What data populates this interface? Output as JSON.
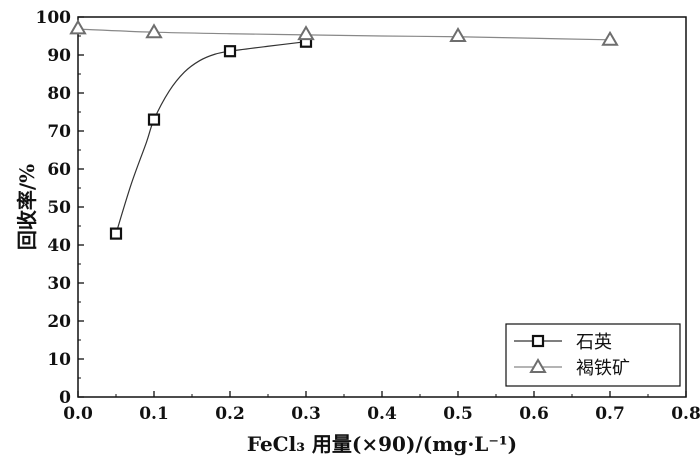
{
  "chart_data": {
    "type": "line",
    "xlabel": "FeCl₃ 用量(×90)/(mg·L⁻¹)",
    "ylabel": "回收率/%",
    "xlim": [
      0,
      0.8
    ],
    "ylim": [
      0,
      100
    ],
    "xticks": [
      "0.0",
      "0.1",
      "0.2",
      "0.3",
      "0.4",
      "0.5",
      "0.6",
      "0.7",
      "0.8"
    ],
    "yticks": [
      "0",
      "10",
      "20",
      "30",
      "40",
      "50",
      "60",
      "70",
      "80",
      "90",
      "100"
    ],
    "grid": false,
    "legend": "bottom-right",
    "series": [
      {
        "name": "石英",
        "marker": "square",
        "color": "#111111",
        "x": [
          0.05,
          0.1,
          0.2,
          0.3
        ],
        "y": [
          43,
          73,
          91,
          93.5
        ],
        "fit": [
          [
            0.05,
            43
          ],
          [
            0.07,
            56
          ],
          [
            0.09,
            67
          ],
          [
            0.1,
            73
          ],
          [
            0.12,
            80.5
          ],
          [
            0.14,
            85.5
          ],
          [
            0.16,
            88.5
          ],
          [
            0.18,
            90.2
          ],
          [
            0.2,
            91
          ],
          [
            0.25,
            92.3
          ],
          [
            0.3,
            93.5
          ]
        ]
      },
      {
        "name": "褐铁矿",
        "marker": "triangle",
        "color": "#6e6e6e",
        "x": [
          0.0,
          0.1,
          0.3,
          0.5,
          0.7
        ],
        "y": [
          97,
          96,
          95.5,
          95,
          94
        ],
        "fit": [
          [
            0.0,
            96.8
          ],
          [
            0.1,
            96
          ],
          [
            0.2,
            95.6
          ],
          [
            0.3,
            95.3
          ],
          [
            0.4,
            95
          ],
          [
            0.5,
            94.8
          ],
          [
            0.6,
            94.4
          ],
          [
            0.7,
            94
          ]
        ]
      }
    ]
  }
}
